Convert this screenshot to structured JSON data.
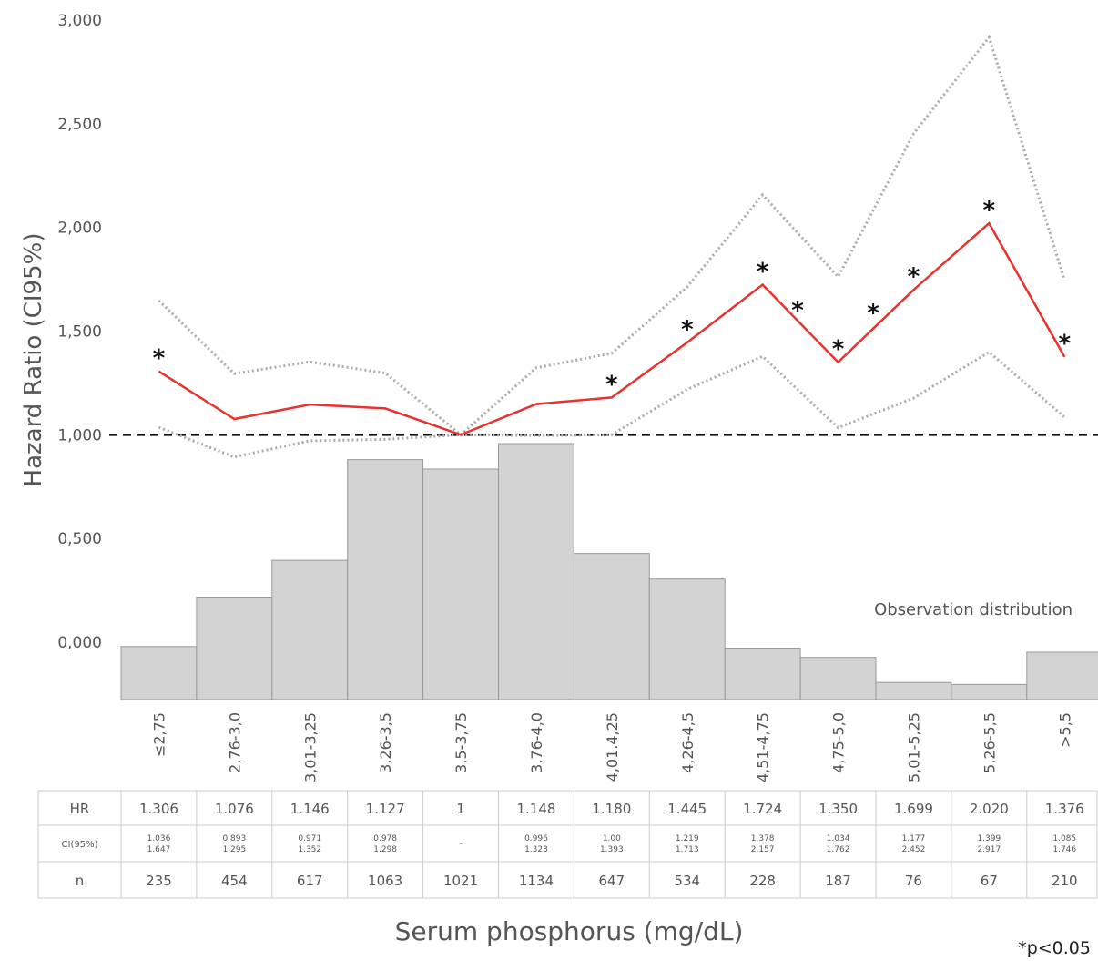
{
  "chart_data": {
    "type": "line",
    "y_label": "Hazard Ratio (CI95%)",
    "x_label": "Serum phosphorus (mg/dL)",
    "footnote": "*p<0.05",
    "distribution_label": "Observation distribution",
    "categories": [
      "≤2,75",
      "2,76-3,0",
      "3,01-3,25",
      "3,26-3,5",
      "3,5-3,75",
      "3,76-4,0",
      "4,01.4,25",
      "4,26-4,5",
      "4,51-4,75",
      "4,75-5,0",
      "5,01-5,25",
      "5,26-5,5",
      ">5,5"
    ],
    "ylim": [
      0,
      3
    ],
    "yticks": [
      {
        "value": 0,
        "label": "0,000"
      },
      {
        "value": 0.5,
        "label": "0,500"
      },
      {
        "value": 1,
        "label": "1,000"
      },
      {
        "value": 1.5,
        "label": "1,500"
      },
      {
        "value": 2,
        "label": "2,000"
      },
      {
        "value": 2.5,
        "label": "2,500"
      },
      {
        "value": 3,
        "label": "3,000"
      }
    ],
    "reference_line": 1,
    "series": [
      {
        "name": "HR",
        "color": "#e8322f",
        "values": [
          1.306,
          1.076,
          1.146,
          1.127,
          1,
          1.148,
          1.18,
          1.445,
          1.724,
          1.35,
          1.699,
          2.02,
          1.376
        ],
        "value_labels": [
          "1.306",
          "1.076",
          "1.146",
          "1.127",
          "1",
          "1.148",
          "1.180",
          "1.445",
          "1.724",
          "1.350",
          "1.699",
          "2.020",
          "1.376"
        ]
      },
      {
        "name": "CI(95%)",
        "color": "#aaaaaa",
        "values": [
          1.036,
          0.893,
          0.971,
          0.978,
          1,
          0.996,
          1.0,
          1.219,
          1.378,
          1.034,
          1.177,
          1.399,
          1.085
        ]
      },
      {
        "name": "CI(95%)",
        "color": "#aaaaaa",
        "values": [
          1.647,
          1.295,
          1.352,
          1.298,
          1,
          1.323,
          1.393,
          1.713,
          2.157,
          1.762,
          2.452,
          2.917,
          1.746
        ]
      }
    ],
    "ci_labels": [
      [
        "1.036",
        "1.647"
      ],
      [
        "0.893",
        "1.295"
      ],
      [
        "0.971",
        "1.352"
      ],
      [
        "0.978",
        "1.298"
      ],
      [
        "-"
      ],
      [
        "0.996",
        "1.323"
      ],
      [
        "1.00",
        "1.393"
      ],
      [
        "1.219",
        "1.713"
      ],
      [
        "1.378",
        "2.157"
      ],
      [
        "1.034",
        "1.762"
      ],
      [
        "1.177",
        "2.452"
      ],
      [
        "1.399",
        "2.917"
      ],
      [
        "1.085",
        "1.746"
      ]
    ],
    "stars": [
      "*",
      null,
      null,
      null,
      null,
      null,
      "*",
      "*",
      "*",
      "*",
      "*",
      "*",
      "*"
    ],
    "between_stars": [
      null,
      null,
      null,
      null,
      null,
      null,
      null,
      null,
      "*",
      "*",
      null,
      null
    ],
    "n": [
      235,
      454,
      617,
      1063,
      1021,
      1134,
      647,
      534,
      228,
      187,
      76,
      67,
      210
    ],
    "bar_color": "#d3d3d3",
    "row_labels": [
      "HR",
      "CI(95%)",
      "n"
    ]
  }
}
